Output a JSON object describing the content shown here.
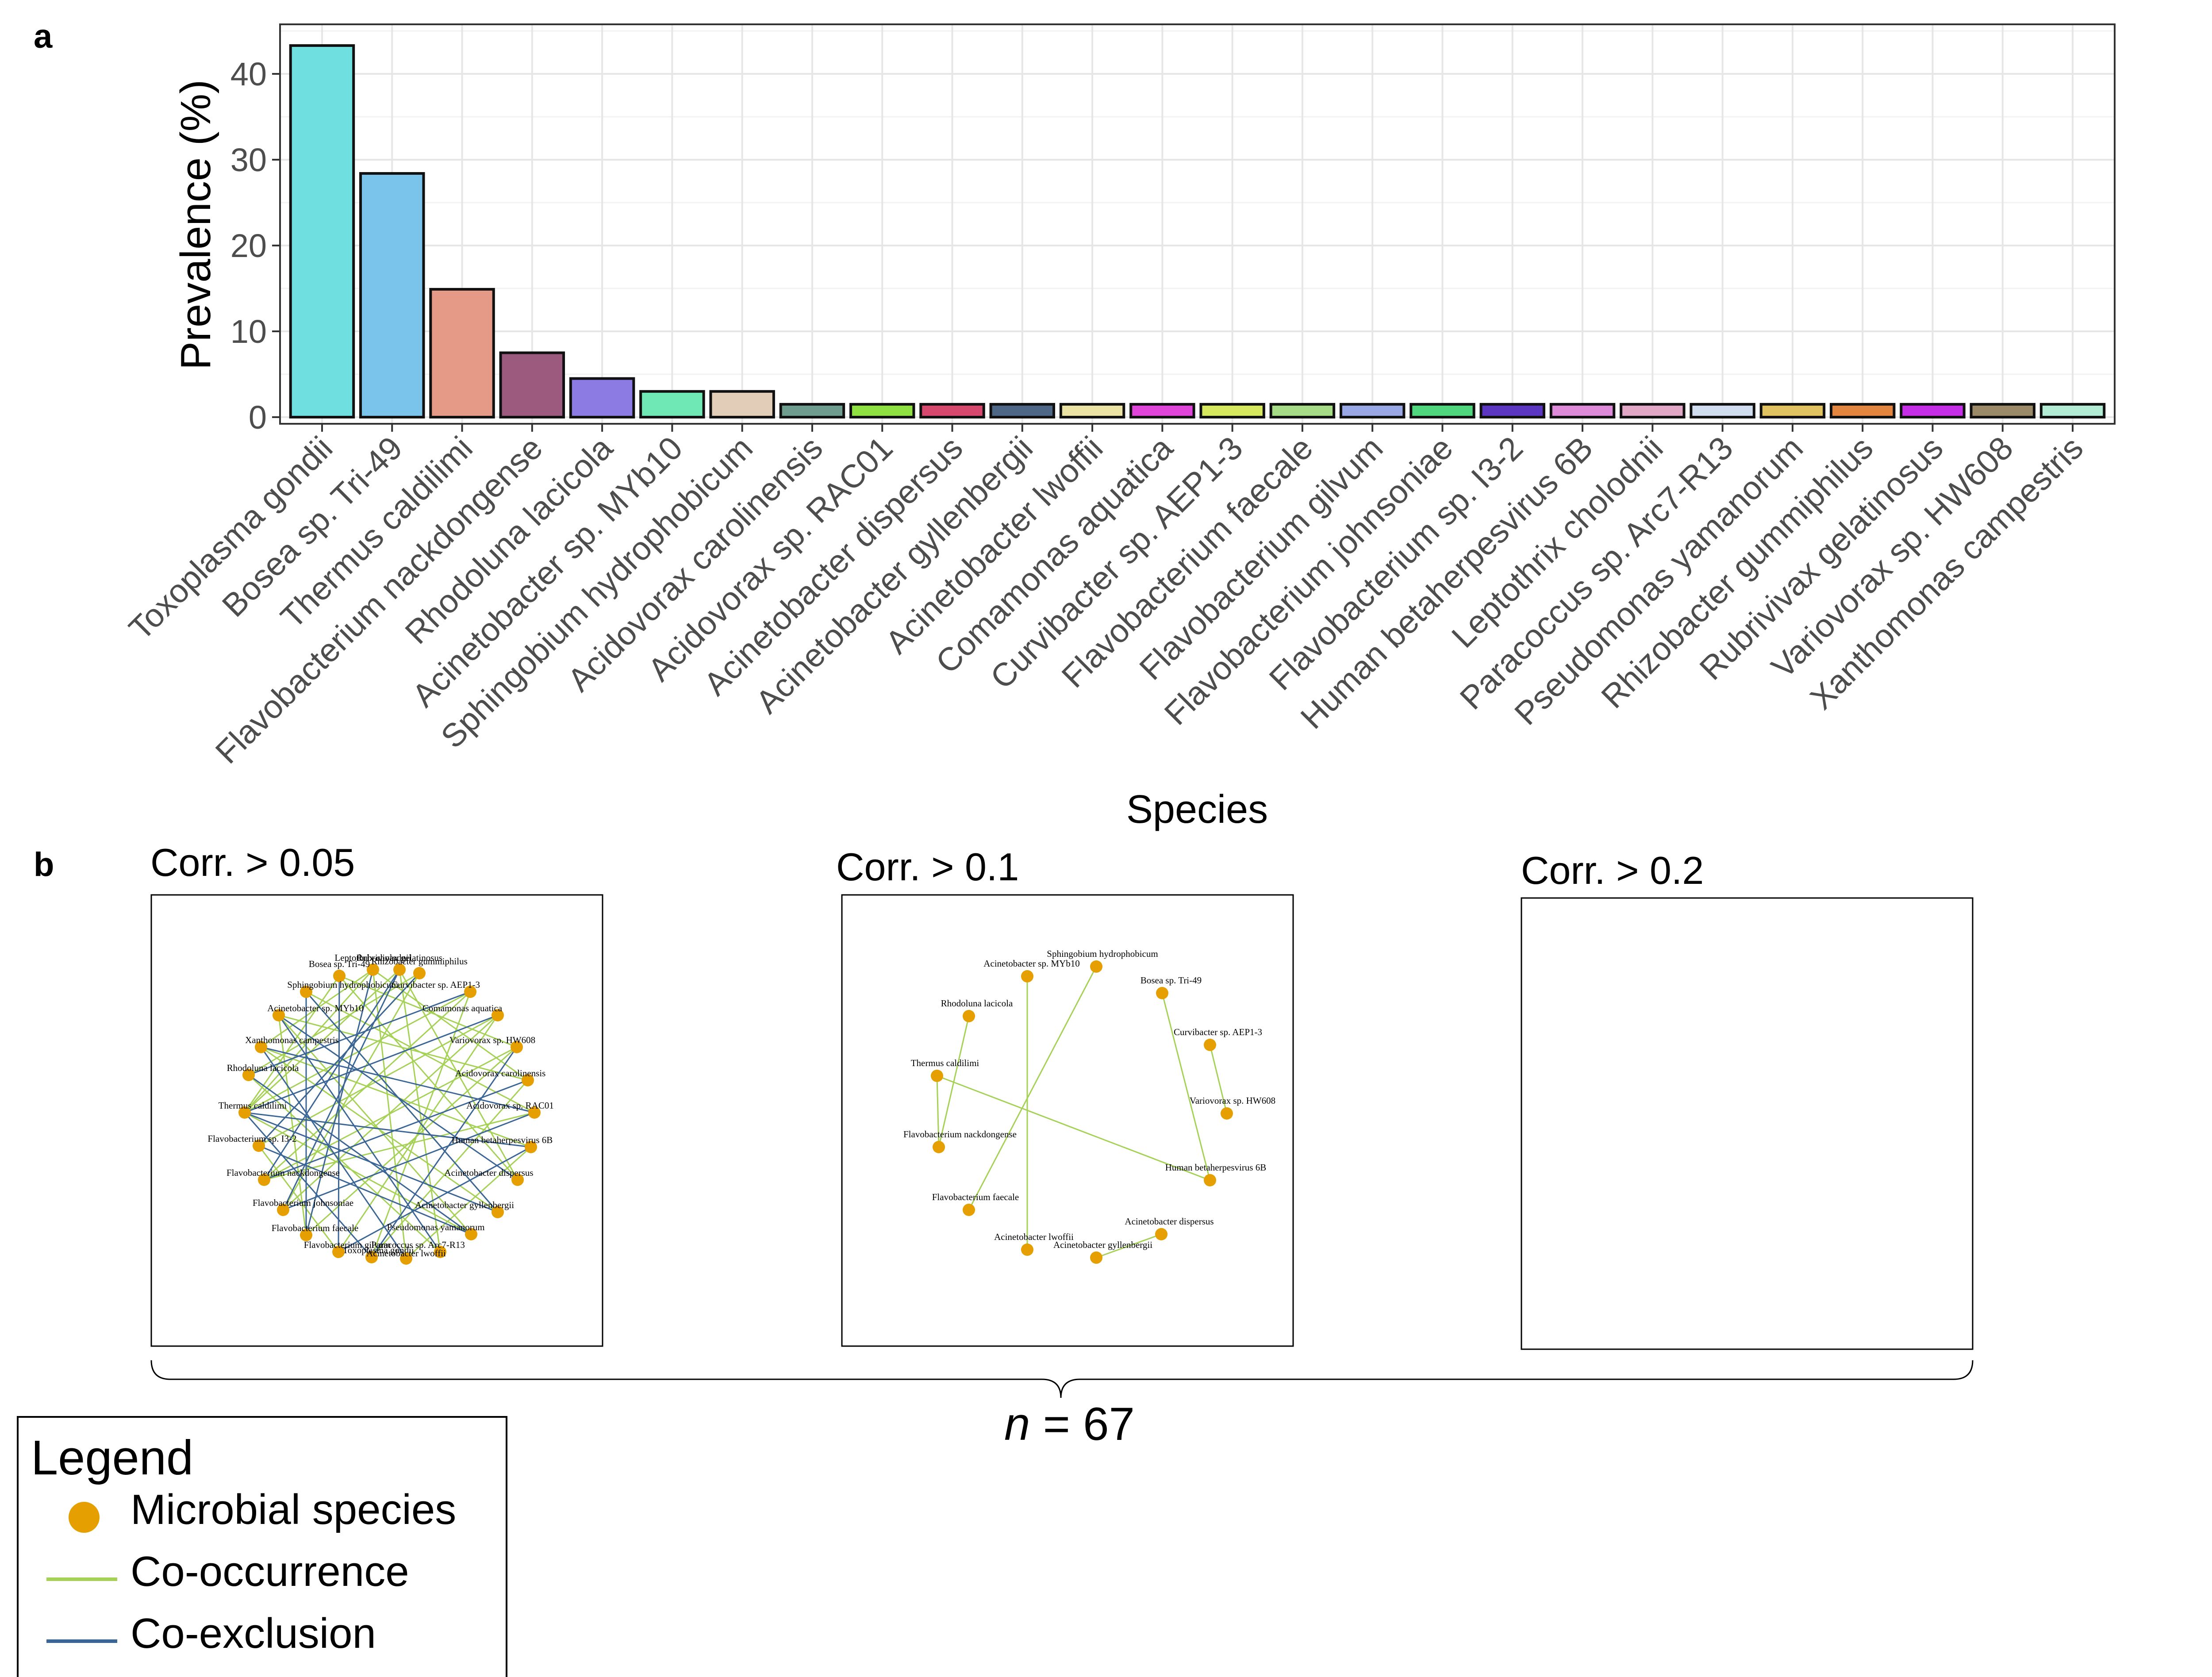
{
  "panels": {
    "a": "a",
    "b": "b"
  },
  "chart_data": {
    "type": "bar",
    "xlabel": "Species",
    "ylabel": "Prevalence (%)",
    "ylim": [
      0,
      45
    ],
    "yticks": [
      0,
      10,
      20,
      30,
      40
    ],
    "grid": true,
    "categories": [
      "Toxoplasma gondii",
      "Bosea sp. Tri-49",
      "Thermus caldilimi",
      "Flavobacterium nackdongense",
      "Rhodoluna lacicola",
      "Acinetobacter sp. MYb10",
      "Sphingobium hydrophobicum",
      "Acidovorax carolinensis",
      "Acidovorax sp. RAC01",
      "Acinetobacter dispersus",
      "Acinetobacter gyllenbergii",
      "Acinetobacter lwoffii",
      "Comamonas aquatica",
      "Curvibacter sp. AEP1-3",
      "Flavobacterium faecale",
      "Flavobacterium gilvum",
      "Flavobacterium johnsoniae",
      "Flavobacterium sp. I3-2",
      "Human betaherpesvirus 6B",
      "Leptothrix cholodnii",
      "Paracoccus sp. Arc7-R13",
      "Pseudomonas yamanorum",
      "Rhizobacter gummiphilus",
      "Rubrivivax gelatinosus",
      "Variovorax sp. HW608",
      "Xanthomonas campestris"
    ],
    "values": [
      43.3,
      28.4,
      14.9,
      7.5,
      4.5,
      3.0,
      3.0,
      1.5,
      1.5,
      1.5,
      1.5,
      1.5,
      1.5,
      1.5,
      1.5,
      1.5,
      1.5,
      1.5,
      1.5,
      1.5,
      1.5,
      1.5,
      1.5,
      1.5,
      1.5,
      1.5
    ],
    "colors": [
      "#6fdfe0",
      "#7ac3ea",
      "#e49a86",
      "#9b5a7e",
      "#8b7be2",
      "#6fe8b6",
      "#e2cdb8",
      "#6e9c8e",
      "#8fe041",
      "#d6486e",
      "#4f6786",
      "#ebe3a4",
      "#de45d8",
      "#d5e85e",
      "#a7dc87",
      "#99a8e5",
      "#4fd77d",
      "#5b36c0",
      "#dd8ad9",
      "#e1a8c6",
      "#cfddee",
      "#e1c260",
      "#e2853f",
      "#c52ee6",
      "#9b8a67",
      "#b3ecd5"
    ]
  },
  "networks": [
    {
      "title": "Corr. > 0.05",
      "nodes": [
        "Leptothrix cholodnii",
        "Rubrivivax gelatinosus",
        "Bosea sp. Tri-49",
        "Rhizobacter gummiphilus",
        "Sphingobium hydrophobicum",
        "Curvibacter sp. AEP1-3",
        "Acinetobacter sp. MYb10",
        "Comamonas aquatica",
        "Xanthomonas campestris",
        "Variovorax sp. HW608",
        "Rhodoluna lacicola",
        "Acidovorax carolinensis",
        "Thermus caldilimi",
        "Acidovorax sp. RAC01",
        "Flavobacterium sp. I3-2",
        "Human betaherpesvirus 6B",
        "Flavobacterium nackdongense",
        "Acinetobacter dispersus",
        "Flavobacterium johnsoniae",
        "Acinetobacter gyllenbergii",
        "Flavobacterium faecale",
        "Pseudomonas yamanorum",
        "Flavobacterium gilvum",
        "Paracoccus sp. Arc7-R13",
        "Toxoplasma gondii",
        "Acinetobacter lwoffii"
      ]
    },
    {
      "title": "Corr. > 0.1",
      "nodes": [
        "Sphingobium hydrophobicum",
        "Acinetobacter sp. MYb10",
        "Bosea sp. Tri-49",
        "Rhodoluna lacicola",
        "Curvibacter sp. AEP1-3",
        "Thermus caldilimi",
        "Variovorax sp. HW608",
        "Flavobacterium nackdongense",
        "Human betaherpesvirus 6B",
        "Flavobacterium faecale",
        "Acinetobacter dispersus",
        "Acinetobacter lwoffii",
        "Acinetobacter gyllenbergii"
      ]
    },
    {
      "title": "Corr. > 0.2",
      "nodes": []
    }
  ],
  "sample_size": {
    "symbol": "n",
    "text": " = 67"
  },
  "legend": {
    "title": "Legend",
    "items": [
      {
        "label": "Microbial species",
        "kind": "dot",
        "color": "#e69f00"
      },
      {
        "label": "Co-occurrence",
        "kind": "line",
        "color": "#a6d157"
      },
      {
        "label": "Co-exclusion",
        "kind": "line",
        "color": "#3b6594"
      }
    ]
  }
}
